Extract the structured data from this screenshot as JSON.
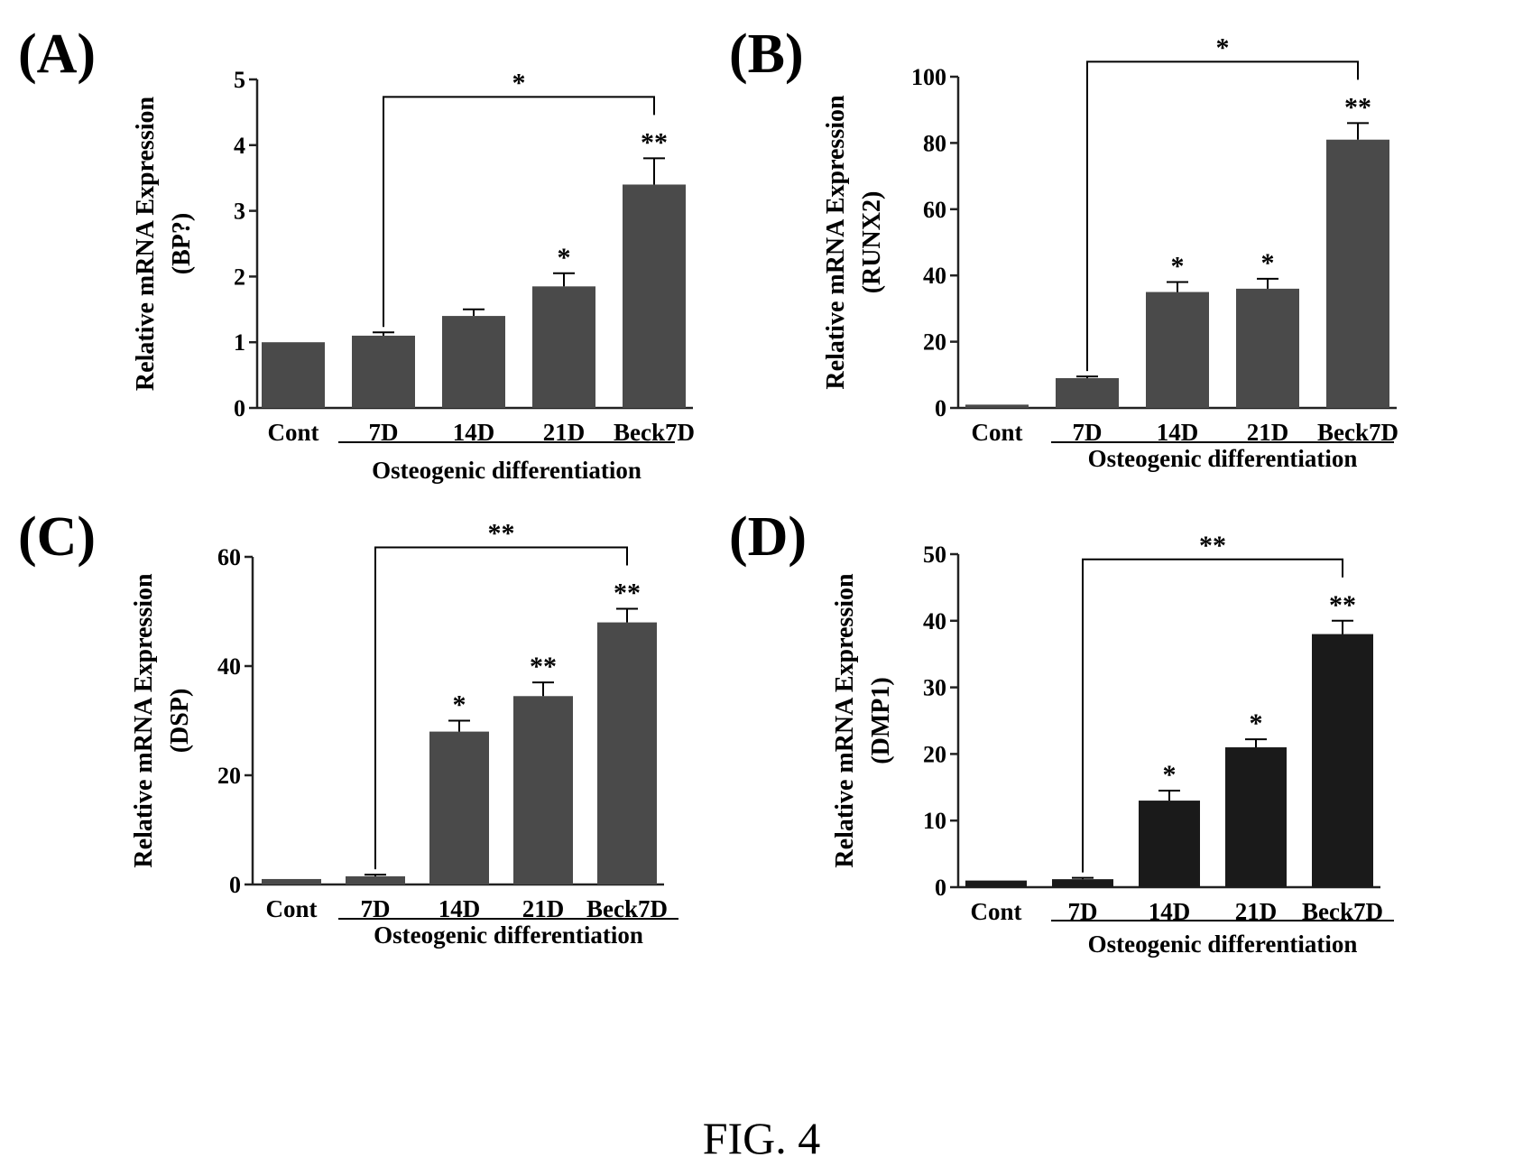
{
  "figure_caption": "FIG. 4",
  "colors": {
    "bar_fill": "#4a4a4a",
    "bar_fill_dark": "#1a1a1a",
    "axis": "#222222"
  },
  "chart_data": [
    {
      "type": "bar",
      "panel_label": "(A)",
      "categories": [
        "Cont",
        "7D",
        "14D",
        "21D",
        "Beck7D"
      ],
      "values": [
        1.0,
        1.1,
        1.4,
        1.85,
        3.4
      ],
      "errors": [
        0.0,
        0.05,
        0.1,
        0.2,
        0.4
      ],
      "significance": [
        "",
        "",
        "",
        "*",
        "**"
      ],
      "ylim": [
        0,
        5
      ],
      "yticks": [
        0,
        1,
        2,
        3,
        4,
        5
      ],
      "ylabel": "Relative mRNA Expression",
      "ylabel_gene": "(BP?)",
      "group_label": "Osteogenic differentiation",
      "group_underline_start": 1,
      "bracket": {
        "from": 1,
        "to": 4,
        "label": "*"
      }
    },
    {
      "type": "bar",
      "panel_label": "(B)",
      "categories": [
        "Cont",
        "7D",
        "14D",
        "21D",
        "Beck7D"
      ],
      "values": [
        1,
        9,
        35,
        36,
        81
      ],
      "errors": [
        0,
        0.5,
        3,
        3,
        5
      ],
      "significance": [
        "",
        "",
        "*",
        "*",
        "**"
      ],
      "ylim": [
        0,
        100
      ],
      "yticks": [
        0,
        20,
        40,
        60,
        80,
        100
      ],
      "ylabel": "Relative mRNA Expression",
      "ylabel_gene": "(RUNX2)",
      "group_label": "Osteogenic differentiation",
      "group_underline_start": 1,
      "bracket": {
        "from": 1,
        "to": 4,
        "label": "*"
      }
    },
    {
      "type": "bar",
      "panel_label": "(C)",
      "categories": [
        "Cont",
        "7D",
        "14D",
        "21D",
        "Beck7D"
      ],
      "values": [
        1,
        1.5,
        28,
        34.5,
        48
      ],
      "errors": [
        0,
        0.3,
        2,
        2.5,
        2.5
      ],
      "significance": [
        "",
        "",
        "*",
        "**",
        "**"
      ],
      "ylim": [
        0,
        60
      ],
      "yticks": [
        0,
        20,
        40,
        60
      ],
      "ylabel": "Relative mRNA Expression",
      "ylabel_gene": "(DSP)",
      "group_label": "Osteogenic differentiation",
      "group_underline_start": 1,
      "bracket": {
        "from": 1,
        "to": 4,
        "label": "**"
      }
    },
    {
      "type": "bar",
      "panel_label": "(D)",
      "categories": [
        "Cont",
        "7D",
        "14D",
        "21D",
        "Beck7D"
      ],
      "values": [
        1,
        1.2,
        13,
        21,
        38
      ],
      "errors": [
        0,
        0.2,
        1.5,
        1.2,
        2
      ],
      "significance": [
        "",
        "",
        "*",
        "*",
        "**"
      ],
      "ylim": [
        0,
        50
      ],
      "yticks": [
        0,
        10,
        20,
        30,
        40,
        50
      ],
      "ylabel": "Relative mRNA Expression",
      "ylabel_gene": "(DMP1)",
      "group_label": "Osteogenic differentiation",
      "group_underline_start": 1,
      "bracket": {
        "from": 1,
        "to": 4,
        "label": "**"
      }
    }
  ]
}
